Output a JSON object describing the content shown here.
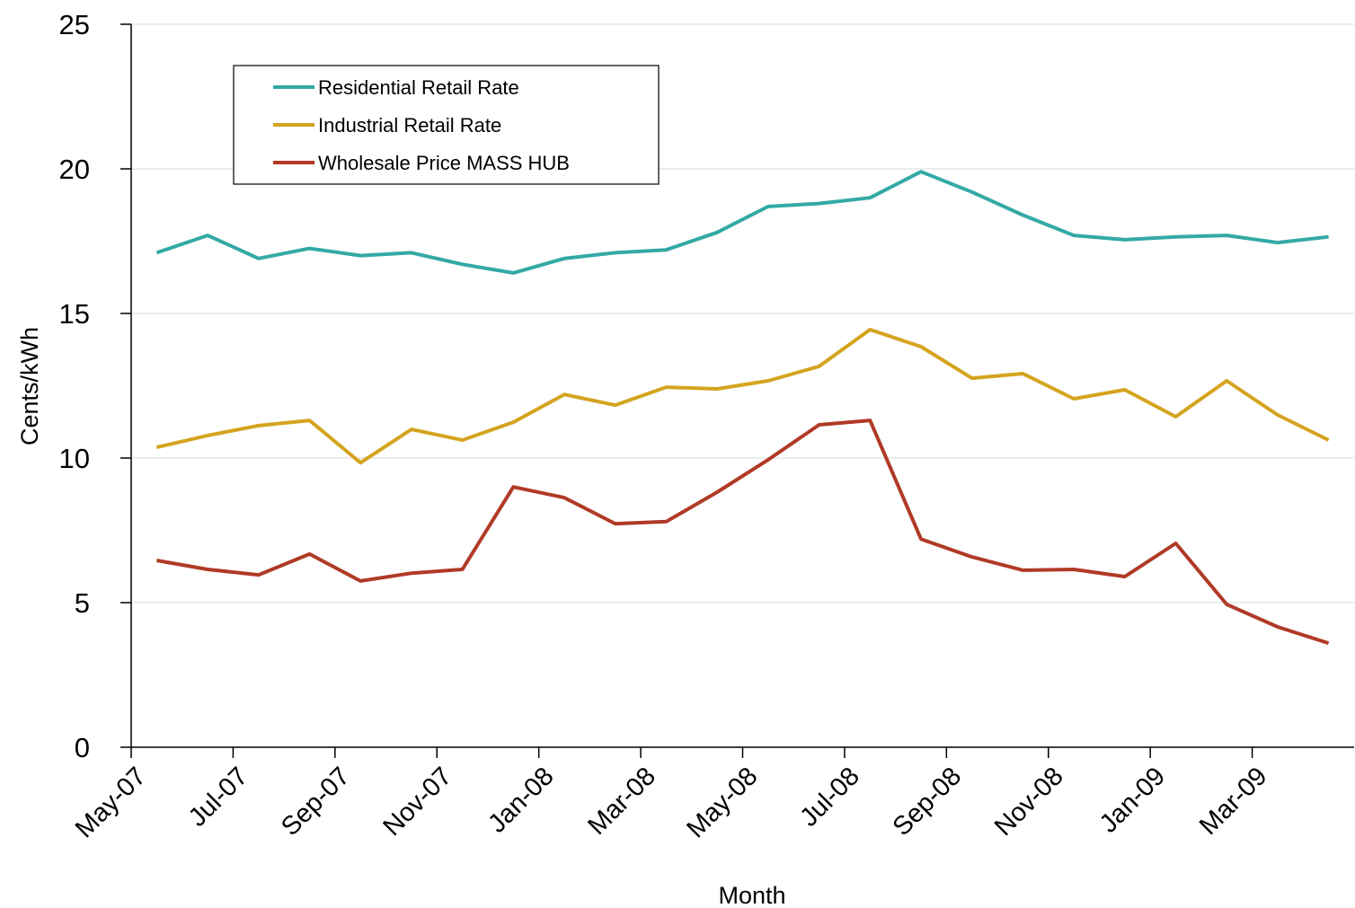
{
  "chart_data": {
    "type": "line",
    "y_label": "Cents/kWh",
    "x_label": "Month",
    "categories": [
      "May-07",
      null,
      "Jul-07",
      null,
      "Sep-07",
      null,
      "Nov-07",
      null,
      "Jan-08",
      null,
      "Mar-08",
      null,
      "May-08",
      null,
      "Jul-08",
      null,
      "Sep-08",
      null,
      "Nov-08",
      null,
      "Jan-09",
      null,
      "Mar-09",
      null
    ],
    "series": [
      {
        "name": "Residential Retail Rate",
        "color": "#33a9a5",
        "values": [
          17.1,
          17.7,
          16.9,
          17.25,
          17.0,
          17.1,
          16.7,
          16.4,
          16.9,
          17.1,
          17.2,
          17.8,
          18.7,
          18.8,
          19.0,
          19.9,
          19.2,
          18.4,
          17.7,
          17.55,
          17.65,
          17.7,
          17.45,
          17.65
        ]
      },
      {
        "name": "Industrial Retail Rate",
        "color": "#d4a41f",
        "values": [
          10.37,
          10.78,
          11.12,
          11.3,
          9.84,
          10.99,
          10.62,
          11.24,
          12.2,
          11.83,
          12.45,
          12.39,
          12.67,
          13.17,
          14.44,
          13.85,
          12.76,
          12.92,
          12.05,
          12.36,
          11.43,
          12.67,
          11.49,
          10.62
        ]
      },
      {
        "name": "Wholesale Price MASS HUB",
        "color": "#b03a26",
        "values": [
          6.46,
          6.15,
          5.96,
          6.68,
          5.75,
          6.02,
          6.15,
          9.0,
          8.63,
          7.73,
          7.8,
          8.82,
          9.94,
          11.15,
          11.3,
          7.2,
          6.58,
          6.12,
          6.15,
          5.9,
          7.05,
          4.94,
          4.16,
          3.6
        ]
      }
    ],
    "ylim": [
      0,
      25
    ],
    "yticks": [
      0,
      5,
      10,
      15,
      20,
      25
    ],
    "grid": true,
    "legend": "upper left"
  }
}
